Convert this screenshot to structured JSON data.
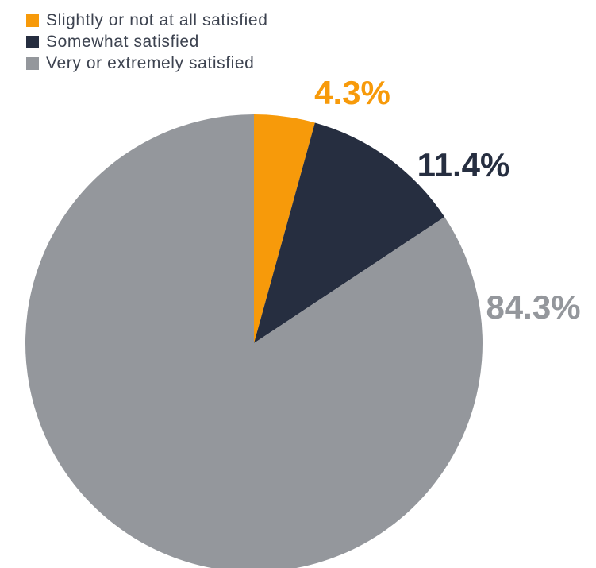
{
  "chart_data": {
    "type": "pie",
    "title": "",
    "legend_position": "top-left",
    "start_angle_deg": 0,
    "direction": "clockwise",
    "slices": [
      {
        "label": "Slightly or not at all satisfied",
        "value": 4.3,
        "value_label": "4.3%",
        "color": "#f79a0a"
      },
      {
        "label": "Somewhat satisfied",
        "value": 11.4,
        "value_label": "11.4%",
        "color": "#262e40"
      },
      {
        "label": "Very or extremely satisfied",
        "value": 84.3,
        "value_label": "84.3%",
        "color": "#94979c"
      }
    ]
  }
}
